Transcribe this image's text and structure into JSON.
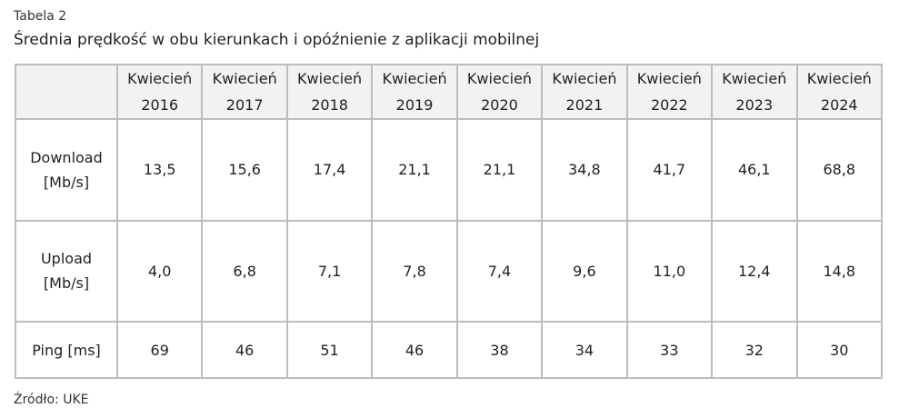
{
  "table_label": "Tabela 2",
  "table_title": "Średnia prędkość w obu kierunkach i opóźnienie z aplikacji mobilnej",
  "columns": [
    {
      "month": "Kwiecień",
      "year": "2016"
    },
    {
      "month": "Kwiecień",
      "year": "2017"
    },
    {
      "month": "Kwiecień",
      "year": "2018"
    },
    {
      "month": "Kwiecień",
      "year": "2019"
    },
    {
      "month": "Kwiecień",
      "year": "2020"
    },
    {
      "month": "Kwiecień",
      "year": "2021"
    },
    {
      "month": "Kwiecień",
      "year": "2022"
    },
    {
      "month": "Kwiecień",
      "year": "2023"
    },
    {
      "month": "Kwiecień",
      "year": "2024"
    }
  ],
  "rows": [
    {
      "label_line1": "Download",
      "label_line2": "[Mb/s]",
      "values": [
        "13,5",
        "15,6",
        "17,4",
        "21,1",
        "21,1",
        "34,8",
        "41,7",
        "46,1",
        "68,8"
      ]
    },
    {
      "label_line1": "Upload",
      "label_line2": "[Mb/s]",
      "values": [
        "4,0",
        "6,8",
        "7,1",
        "7,8",
        "7,4",
        "9,6",
        "11,0",
        "12,4",
        "14,8"
      ]
    },
    {
      "label_line1": "Ping [ms]",
      "label_line2": "",
      "values": [
        "69",
        "46",
        "51",
        "46",
        "38",
        "34",
        "33",
        "32",
        "30"
      ]
    }
  ],
  "source": "Źródło: UKE"
}
